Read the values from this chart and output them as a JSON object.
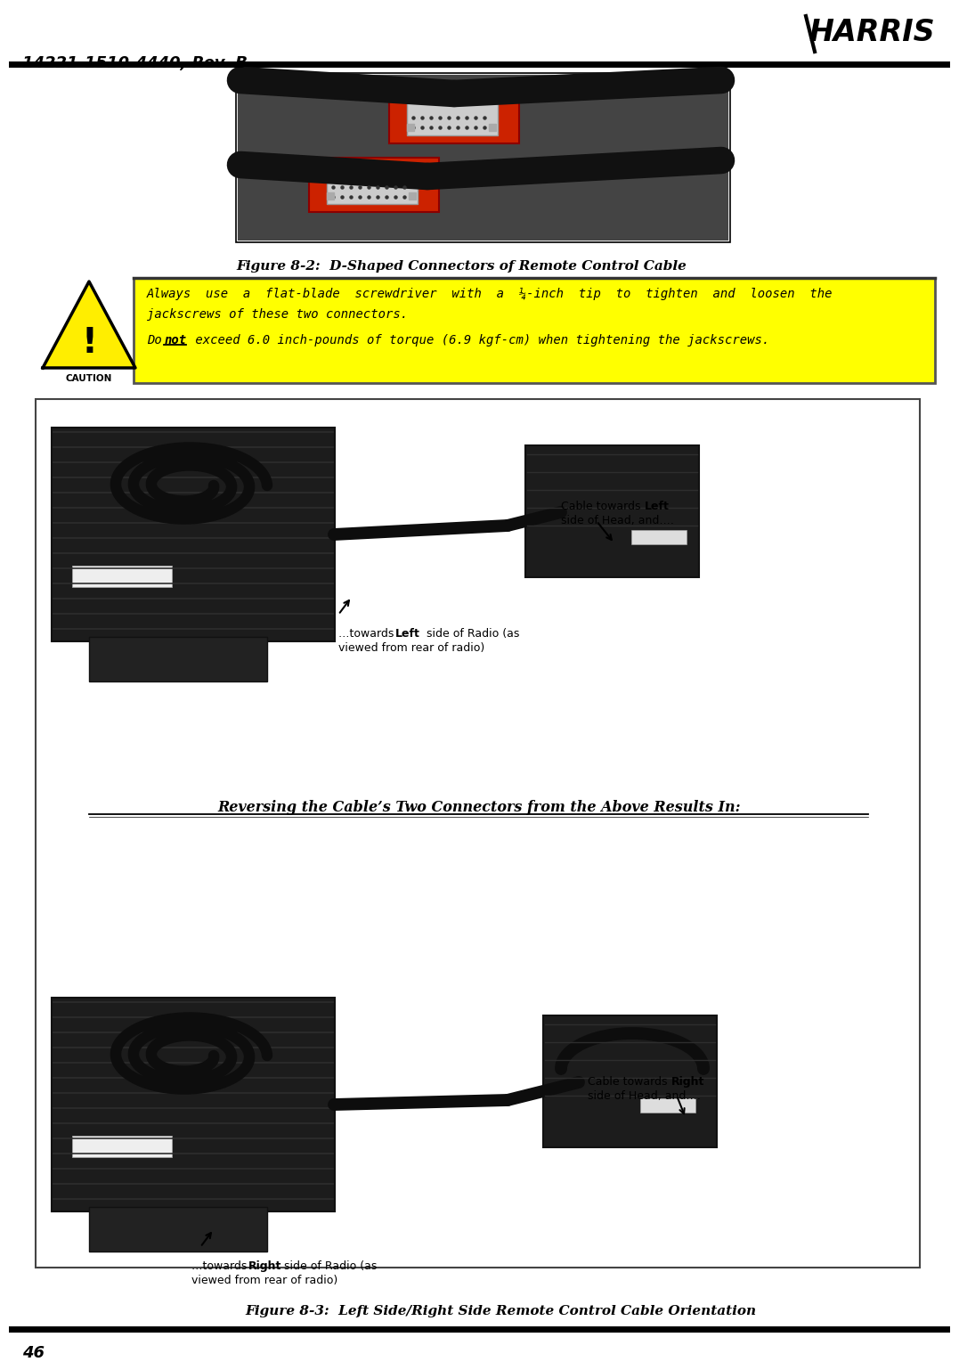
{
  "page_title": "14221-1510-4440, Rev. B",
  "page_number": "46",
  "fig2_caption": "Figure 8-2:  D-Shaped Connectors of Remote Control Cable",
  "caution_line1": "Always  use  a  flat-blade  screwdriver  with  a  ¼-inch  tip  to  tighten  and  loosen  the",
  "caution_line2": "jackscrews of these two connectors.",
  "caution_line3_pre": "Do ",
  "caution_line3_bold": "not",
  "caution_line3_post": " exceed 6.0 inch-pounds of torque (6.9 kgf-cm) when tightening the jackscrews.",
  "reversing_text": "Reversing the Cable’s Two Connectors from the Above Results In:",
  "fig3_caption": "Figure 8-3:  Left Side/Right Side Remote Control Cable Orientation",
  "label_left_head_pre": "Cable towards ",
  "label_left_head_bold": "Left",
  "label_left_head_post": "\nside of Head, and….",
  "label_left_radio_pre": "…towards ",
  "label_left_radio_bold": "Left",
  "label_left_radio_post": " side of Radio (as\nviewed from rear of radio)",
  "label_right_head_pre": "Cable towards ",
  "label_right_head_bold": "Right",
  "label_right_head_post": "\nside of Head, and….",
  "label_right_radio_pre": "…towards ",
  "label_right_radio_bold": "Right",
  "label_right_radio_post": " side of Radio (as\nviewed from rear of radio)",
  "bg_color": "#ffffff",
  "yellow_bg": "#ffff00",
  "black": "#000000",
  "box_border_color": "#000000",
  "fig_width": 10.57,
  "fig_height": 15.11
}
